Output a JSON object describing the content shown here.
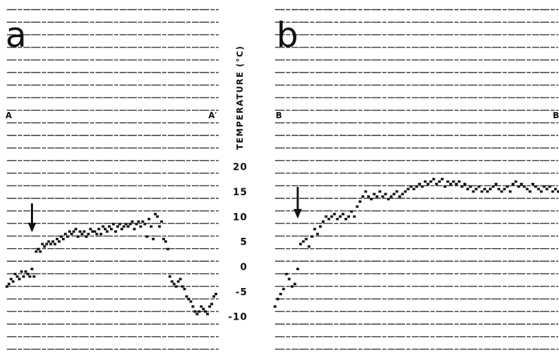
{
  "chart_data": [
    {
      "type": "scatter",
      "panel_label": "a",
      "start_label": "A",
      "end_label": "A′",
      "ylabel": "TEMPERATURE (°C)",
      "ylim": [
        -12,
        22
      ],
      "yticks": [
        20,
        15,
        10,
        5,
        0,
        -5,
        -10
      ],
      "xlim": [
        0,
        1
      ],
      "arrow_x": 0.12,
      "series": [
        {
          "x": [
            0.0,
            0.01,
            0.02,
            0.03,
            0.04,
            0.05,
            0.06,
            0.07,
            0.08,
            0.09,
            0.1,
            0.11,
            0.12,
            0.13,
            0.14,
            0.15,
            0.16,
            0.17,
            0.18,
            0.19,
            0.2,
            0.21,
            0.22,
            0.23,
            0.24,
            0.25,
            0.26,
            0.27,
            0.28,
            0.29,
            0.3,
            0.31,
            0.32,
            0.33,
            0.34,
            0.35,
            0.36,
            0.37,
            0.38,
            0.39,
            0.4,
            0.41,
            0.42,
            0.43,
            0.44,
            0.45,
            0.46,
            0.47,
            0.48,
            0.49,
            0.5,
            0.51,
            0.52,
            0.53,
            0.54,
            0.55,
            0.56,
            0.57,
            0.58,
            0.59,
            0.6,
            0.61,
            0.62,
            0.63,
            0.64,
            0.65,
            0.66,
            0.67,
            0.68,
            0.69,
            0.7,
            0.71,
            0.72,
            0.73,
            0.74,
            0.75,
            0.76,
            0.77,
            0.78,
            0.79,
            0.8,
            0.81,
            0.82,
            0.83,
            0.84,
            0.85,
            0.86,
            0.87,
            0.88,
            0.89,
            0.9,
            0.91,
            0.92,
            0.93,
            0.94,
            0.95,
            0.96,
            0.97,
            0.98,
            0.99,
            1.0
          ],
          "y": [
            -4.0,
            -3.5,
            -2.5,
            -3.0,
            -1.5,
            -2.0,
            -2.5,
            -1.0,
            -2.0,
            -1.0,
            -1.5,
            -2.0,
            -0.5,
            -2.0,
            3.0,
            3.5,
            3.0,
            4.5,
            4.0,
            4.5,
            5.0,
            4.5,
            5.0,
            4.5,
            5.5,
            5.0,
            6.0,
            5.5,
            6.5,
            6.0,
            7.0,
            6.5,
            7.0,
            7.5,
            6.0,
            7.0,
            6.5,
            7.0,
            6.0,
            6.5,
            7.5,
            7.0,
            7.0,
            6.5,
            7.5,
            6.5,
            8.0,
            7.5,
            7.0,
            8.0,
            7.5,
            8.5,
            7.0,
            8.0,
            8.5,
            7.5,
            8.0,
            8.5,
            8.0,
            8.5,
            9.0,
            7.5,
            8.5,
            9.0,
            8.0,
            9.0,
            8.5,
            6.0,
            9.5,
            8.0,
            5.5,
            10.5,
            10.0,
            8.0,
            9.0,
            5.5,
            5.0,
            3.5,
            -2.0,
            -3.0,
            -3.5,
            -4.0,
            -3.0,
            -2.5,
            -4.0,
            -4.5,
            -6.0,
            -6.5,
            -7.0,
            -8.0,
            -9.0,
            -9.5,
            -9.0,
            -8.0,
            -8.5,
            -9.0,
            -9.5,
            -8.0,
            -7.5,
            -6.0,
            -5.5
          ]
        }
      ]
    },
    {
      "type": "scatter",
      "panel_label": "b",
      "start_label": "B",
      "end_label": "B′",
      "ylim": [
        -12,
        22
      ],
      "xlim": [
        0,
        1
      ],
      "arrow_x": 0.08,
      "series": [
        {
          "x": [
            0.0,
            0.01,
            0.02,
            0.03,
            0.04,
            0.05,
            0.06,
            0.07,
            0.08,
            0.09,
            0.1,
            0.11,
            0.12,
            0.13,
            0.14,
            0.15,
            0.16,
            0.17,
            0.18,
            0.19,
            0.2,
            0.21,
            0.22,
            0.23,
            0.24,
            0.25,
            0.26,
            0.27,
            0.28,
            0.29,
            0.3,
            0.31,
            0.32,
            0.33,
            0.34,
            0.35,
            0.36,
            0.37,
            0.38,
            0.39,
            0.4,
            0.41,
            0.42,
            0.43,
            0.44,
            0.45,
            0.46,
            0.47,
            0.48,
            0.49,
            0.5,
            0.51,
            0.52,
            0.53,
            0.54,
            0.55,
            0.56,
            0.57,
            0.58,
            0.59,
            0.6,
            0.61,
            0.62,
            0.63,
            0.64,
            0.65,
            0.66,
            0.67,
            0.68,
            0.69,
            0.7,
            0.71,
            0.72,
            0.73,
            0.74,
            0.75,
            0.76,
            0.77,
            0.78,
            0.79,
            0.8,
            0.81,
            0.82,
            0.83,
            0.84,
            0.85,
            0.86,
            0.87,
            0.88,
            0.89,
            0.9,
            0.91,
            0.92,
            0.93,
            0.94,
            0.95,
            0.96,
            0.97,
            0.98,
            0.99,
            1.0
          ],
          "y": [
            -8.0,
            -6.5,
            -5.5,
            -4.5,
            -1.5,
            -2.5,
            -4.0,
            -3.5,
            -0.5,
            4.5,
            5.0,
            5.5,
            4.0,
            6.0,
            7.5,
            6.5,
            8.0,
            9.0,
            10.0,
            9.5,
            10.0,
            10.5,
            9.5,
            10.0,
            10.5,
            9.5,
            10.0,
            11.0,
            10.0,
            12.0,
            13.0,
            14.0,
            15.0,
            14.0,
            13.5,
            14.5,
            14.0,
            15.0,
            14.0,
            14.5,
            13.5,
            14.0,
            14.5,
            15.0,
            14.0,
            14.5,
            15.0,
            15.5,
            16.0,
            15.5,
            16.0,
            16.5,
            16.0,
            17.0,
            16.5,
            17.0,
            17.5,
            16.5,
            17.0,
            17.5,
            16.0,
            17.0,
            16.5,
            17.0,
            16.5,
            17.0,
            16.0,
            16.5,
            15.5,
            16.0,
            15.0,
            15.5,
            16.0,
            15.0,
            15.5,
            15.0,
            15.5,
            16.0,
            16.5,
            15.5,
            15.0,
            15.5,
            16.0,
            15.0,
            16.5,
            17.0,
            16.0,
            16.5,
            16.0,
            15.5,
            15.0,
            16.5,
            16.0,
            15.5,
            15.0,
            16.0,
            15.5,
            16.0,
            15.0,
            15.5,
            15.0
          ]
        }
      ]
    }
  ]
}
